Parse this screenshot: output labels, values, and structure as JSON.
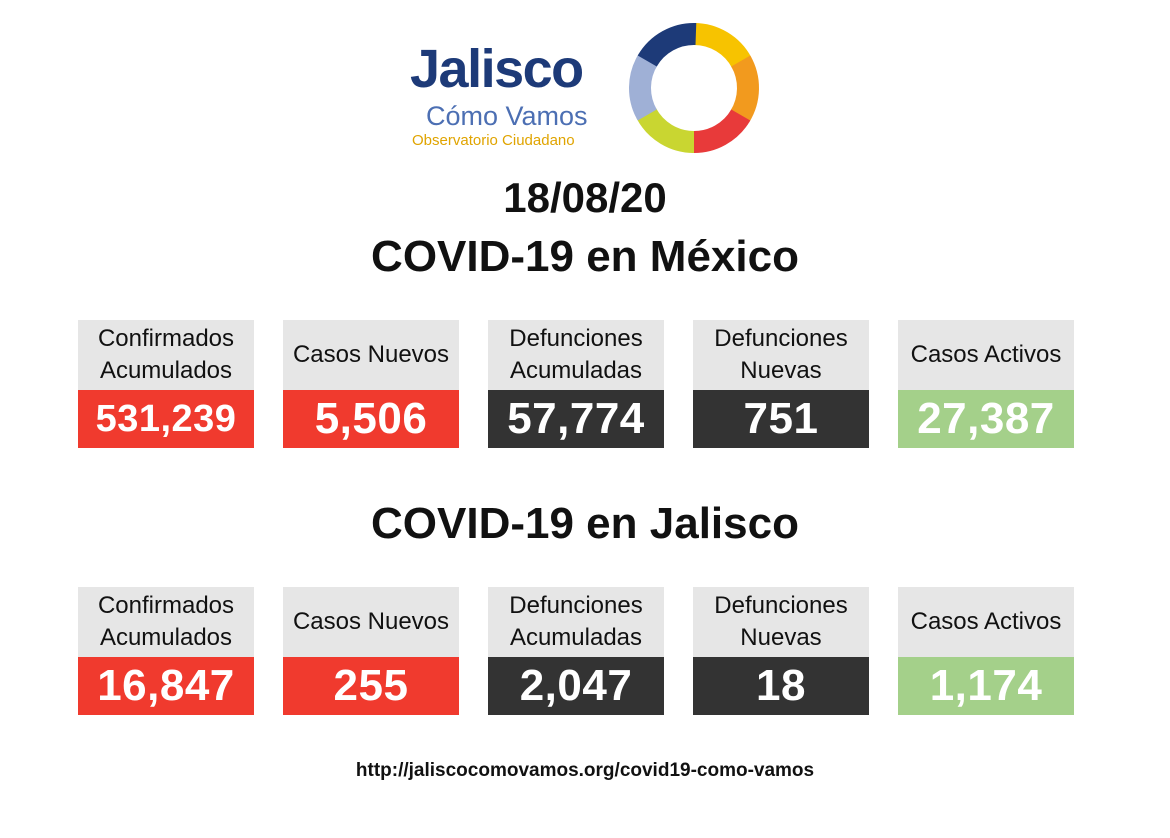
{
  "logo": {
    "name": "Jalisco",
    "subtitle": "Cómo Vamos",
    "tagline": "Observatorio Ciudadano",
    "ring_colors": [
      "#f7c300",
      "#f29a1e",
      "#e83a3a",
      "#c9d631",
      "#9fb0d6",
      "#1d3a78"
    ]
  },
  "date": "18/08/20",
  "mexico": {
    "title": "COVID-19 en México",
    "cards": [
      {
        "label_lines": [
          "Confirmados",
          "Acumulados"
        ],
        "value": "531,239",
        "color": "red"
      },
      {
        "label_lines": [
          "Casos Nuevos"
        ],
        "value": "5,506",
        "color": "red"
      },
      {
        "label_lines": [
          "Defunciones",
          "Acumuladas"
        ],
        "value": "57,774",
        "color": "dark"
      },
      {
        "label_lines": [
          "Defunciones",
          "Nuevas"
        ],
        "value": "751",
        "color": "dark"
      },
      {
        "label_lines": [
          "Casos Activos"
        ],
        "value": "27,387",
        "color": "green"
      }
    ]
  },
  "jalisco": {
    "title": "COVID-19 en Jalisco",
    "cards": [
      {
        "label_lines": [
          "Confirmados",
          "Acumulados"
        ],
        "value": "16,847",
        "color": "red"
      },
      {
        "label_lines": [
          "Casos Nuevos"
        ],
        "value": "255",
        "color": "red"
      },
      {
        "label_lines": [
          "Defunciones",
          "Acumuladas"
        ],
        "value": "2,047",
        "color": "dark"
      },
      {
        "label_lines": [
          "Defunciones",
          "Nuevas"
        ],
        "value": "18",
        "color": "dark"
      },
      {
        "label_lines": [
          "Casos Activos"
        ],
        "value": "1,174",
        "color": "green"
      }
    ]
  },
  "colors": {
    "red": "#f03a2e",
    "dark": "#333333",
    "green": "#a4d08a",
    "label_bg": "#e6e6e6"
  },
  "footer_url": "http://jaliscocomovamos.org/covid19-como-vamos"
}
